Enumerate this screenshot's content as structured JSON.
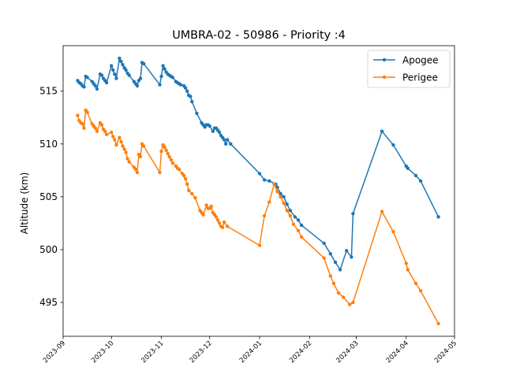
{
  "chart_data": {
    "type": "line",
    "title": "UMBRA-02 - 50986 - Priority :4",
    "xlabel": "",
    "ylabel": "Altitude (km)",
    "x_axis": "date",
    "xlim": [
      "2023-09-01",
      "2024-05-01"
    ],
    "ylim": [
      491.8,
      519.3
    ],
    "x_ticks": [
      "2023-09",
      "2023-10",
      "2023-11",
      "2023-12",
      "2024-01",
      "2024-02",
      "2024-03",
      "2024-04",
      "2024-05"
    ],
    "y_ticks": [
      495,
      500,
      505,
      510,
      515
    ],
    "grid": false,
    "legend_position": "top-right",
    "series": [
      {
        "name": "Apogee",
        "color": "#1f77b4",
        "marker": "circle",
        "points": [
          [
            "2023-09-10",
            516.0
          ],
          [
            "2023-09-11",
            515.8
          ],
          [
            "2023-09-12",
            515.7
          ],
          [
            "2023-09-13",
            515.5
          ],
          [
            "2023-09-14",
            515.4
          ],
          [
            "2023-09-15",
            516.4
          ],
          [
            "2023-09-16",
            516.3
          ],
          [
            "2023-09-19",
            515.9
          ],
          [
            "2023-09-20",
            515.7
          ],
          [
            "2023-09-21",
            515.5
          ],
          [
            "2023-09-22",
            515.2
          ],
          [
            "2023-09-24",
            516.6
          ],
          [
            "2023-09-25",
            516.5
          ],
          [
            "2023-09-26",
            516.2
          ],
          [
            "2023-09-27",
            516.0
          ],
          [
            "2023-09-28",
            515.8
          ],
          [
            "2023-10-01",
            517.4
          ],
          [
            "2023-10-02",
            517.0
          ],
          [
            "2023-10-03",
            516.6
          ],
          [
            "2023-10-04",
            516.2
          ],
          [
            "2023-10-06",
            518.1
          ],
          [
            "2023-10-07",
            517.8
          ],
          [
            "2023-10-08",
            517.5
          ],
          [
            "2023-10-09",
            517.2
          ],
          [
            "2023-10-10",
            517.0
          ],
          [
            "2023-10-11",
            516.7
          ],
          [
            "2023-10-12",
            516.5
          ],
          [
            "2023-10-15",
            515.9
          ],
          [
            "2023-10-16",
            515.7
          ],
          [
            "2023-10-17",
            515.5
          ],
          [
            "2023-10-18",
            516.0
          ],
          [
            "2023-10-19",
            516.2
          ],
          [
            "2023-10-20",
            517.7
          ],
          [
            "2023-10-21",
            517.6
          ],
          [
            "2023-10-31",
            515.6
          ],
          [
            "2023-11-01",
            516.4
          ],
          [
            "2023-11-02",
            517.4
          ],
          [
            "2023-11-03",
            517.1
          ],
          [
            "2023-11-04",
            516.8
          ],
          [
            "2023-11-05",
            516.6
          ],
          [
            "2023-11-06",
            516.5
          ],
          [
            "2023-11-07",
            516.4
          ],
          [
            "2023-11-08",
            516.3
          ],
          [
            "2023-11-10",
            515.9
          ],
          [
            "2023-11-11",
            515.8
          ],
          [
            "2023-11-12",
            515.7
          ],
          [
            "2023-11-13",
            515.6
          ],
          [
            "2023-11-15",
            515.5
          ],
          [
            "2023-11-16",
            515.3
          ],
          [
            "2023-11-17",
            515.0
          ],
          [
            "2023-11-18",
            514.6
          ],
          [
            "2023-11-19",
            514.5
          ],
          [
            "2023-11-20",
            514.0
          ],
          [
            "2023-11-23",
            512.9
          ],
          [
            "2023-11-26",
            512.0
          ],
          [
            "2023-11-27",
            511.8
          ],
          [
            "2023-11-28",
            511.6
          ],
          [
            "2023-11-29",
            511.8
          ],
          [
            "2023-11-30",
            511.8
          ],
          [
            "2023-12-01",
            511.7
          ],
          [
            "2023-12-03",
            511.2
          ],
          [
            "2023-12-04",
            511.5
          ],
          [
            "2023-12-05",
            511.5
          ],
          [
            "2023-12-06",
            511.3
          ],
          [
            "2023-12-07",
            511.1
          ],
          [
            "2023-12-08",
            510.8
          ],
          [
            "2023-12-09",
            510.6
          ],
          [
            "2023-12-10",
            510.4
          ],
          [
            "2023-12-11",
            510.0
          ],
          [
            "2023-12-12",
            510.4
          ],
          [
            "2023-12-14",
            510.0
          ],
          [
            "2024-01-01",
            507.2
          ],
          [
            "2024-01-04",
            506.6
          ],
          [
            "2024-01-07",
            506.5
          ],
          [
            "2024-01-11",
            506.2
          ],
          [
            "2024-01-12",
            505.9
          ],
          [
            "2024-01-14",
            505.3
          ],
          [
            "2024-01-16",
            505.0
          ],
          [
            "2024-01-18",
            504.3
          ],
          [
            "2024-01-20",
            503.7
          ],
          [
            "2024-01-23",
            503.1
          ],
          [
            "2024-01-25",
            502.8
          ],
          [
            "2024-01-27",
            502.3
          ],
          [
            "2024-02-10",
            500.6
          ],
          [
            "2024-02-14",
            499.6
          ],
          [
            "2024-02-17",
            498.8
          ],
          [
            "2024-02-20",
            498.1
          ],
          [
            "2024-02-24",
            499.9
          ],
          [
            "2024-02-27",
            499.3
          ],
          [
            "2024-02-28",
            503.4
          ],
          [
            "2024-03-17",
            511.2
          ],
          [
            "2024-03-24",
            509.9
          ],
          [
            "2024-04-01",
            507.9
          ],
          [
            "2024-04-02",
            507.7
          ],
          [
            "2024-04-07",
            507.0
          ],
          [
            "2024-04-10",
            506.5
          ],
          [
            "2024-04-21",
            503.1
          ]
        ]
      },
      {
        "name": "Perigee",
        "color": "#ff7f0e",
        "marker": "circle",
        "points": [
          [
            "2023-09-10",
            512.7
          ],
          [
            "2023-09-11",
            512.2
          ],
          [
            "2023-09-12",
            512.0
          ],
          [
            "2023-09-13",
            511.9
          ],
          [
            "2023-09-14",
            511.5
          ],
          [
            "2023-09-15",
            513.2
          ],
          [
            "2023-09-16",
            513.0
          ],
          [
            "2023-09-19",
            511.9
          ],
          [
            "2023-09-20",
            511.7
          ],
          [
            "2023-09-21",
            511.5
          ],
          [
            "2023-09-22",
            511.2
          ],
          [
            "2023-09-24",
            512.0
          ],
          [
            "2023-09-25",
            511.8
          ],
          [
            "2023-09-26",
            511.4
          ],
          [
            "2023-09-27",
            511.2
          ],
          [
            "2023-09-28",
            510.9
          ],
          [
            "2023-10-01",
            511.1
          ],
          [
            "2023-10-02",
            510.7
          ],
          [
            "2023-10-03",
            510.4
          ],
          [
            "2023-10-04",
            509.9
          ],
          [
            "2023-10-06",
            510.6
          ],
          [
            "2023-10-07",
            510.2
          ],
          [
            "2023-10-08",
            509.8
          ],
          [
            "2023-10-09",
            509.5
          ],
          [
            "2023-10-10",
            509.2
          ],
          [
            "2023-10-11",
            508.6
          ],
          [
            "2023-10-12",
            508.3
          ],
          [
            "2023-10-15",
            507.8
          ],
          [
            "2023-10-16",
            507.6
          ],
          [
            "2023-10-17",
            507.3
          ],
          [
            "2023-10-18",
            509.0
          ],
          [
            "2023-10-19",
            508.8
          ],
          [
            "2023-10-20",
            510.0
          ],
          [
            "2023-10-21",
            509.8
          ],
          [
            "2023-10-31",
            507.3
          ],
          [
            "2023-11-01",
            509.3
          ],
          [
            "2023-11-02",
            509.9
          ],
          [
            "2023-11-03",
            509.7
          ],
          [
            "2023-11-04",
            509.4
          ],
          [
            "2023-11-05",
            509.1
          ],
          [
            "2023-11-06",
            508.8
          ],
          [
            "2023-11-07",
            508.5
          ],
          [
            "2023-11-08",
            508.2
          ],
          [
            "2023-11-10",
            507.9
          ],
          [
            "2023-11-11",
            507.7
          ],
          [
            "2023-11-12",
            507.6
          ],
          [
            "2023-11-14",
            507.2
          ],
          [
            "2023-11-15",
            507.0
          ],
          [
            "2023-11-16",
            506.7
          ],
          [
            "2023-11-17",
            506.2
          ],
          [
            "2023-11-18",
            505.6
          ],
          [
            "2023-11-20",
            505.3
          ],
          [
            "2023-11-22",
            504.9
          ],
          [
            "2023-11-25",
            503.7
          ],
          [
            "2023-11-26",
            503.5
          ],
          [
            "2023-11-27",
            503.3
          ],
          [
            "2023-11-29",
            504.2
          ],
          [
            "2023-11-30",
            503.9
          ],
          [
            "2023-12-01",
            503.9
          ],
          [
            "2023-12-02",
            504.1
          ],
          [
            "2023-12-03",
            503.5
          ],
          [
            "2023-12-04",
            503.3
          ],
          [
            "2023-12-05",
            503.1
          ],
          [
            "2023-12-06",
            502.8
          ],
          [
            "2023-12-07",
            502.5
          ],
          [
            "2023-12-08",
            502.2
          ],
          [
            "2023-12-09",
            502.1
          ],
          [
            "2023-12-10",
            502.6
          ],
          [
            "2023-12-12",
            502.2
          ],
          [
            "2024-01-01",
            500.4
          ],
          [
            "2024-01-04",
            503.2
          ],
          [
            "2024-01-07",
            504.5
          ],
          [
            "2024-01-10",
            506.2
          ],
          [
            "2024-01-12",
            505.5
          ],
          [
            "2024-01-14",
            505.0
          ],
          [
            "2024-01-16",
            504.4
          ],
          [
            "2024-01-18",
            503.7
          ],
          [
            "2024-01-20",
            503.2
          ],
          [
            "2024-01-22",
            502.4
          ],
          [
            "2024-01-25",
            501.8
          ],
          [
            "2024-01-27",
            501.2
          ],
          [
            "2024-02-10",
            499.2
          ],
          [
            "2024-02-14",
            497.5
          ],
          [
            "2024-02-16",
            496.8
          ],
          [
            "2024-02-19",
            495.9
          ],
          [
            "2024-02-22",
            495.5
          ],
          [
            "2024-02-26",
            494.8
          ],
          [
            "2024-02-28",
            495.0
          ],
          [
            "2024-03-17",
            503.6
          ],
          [
            "2024-03-24",
            501.7
          ],
          [
            "2024-04-01",
            498.7
          ],
          [
            "2024-04-02",
            498.1
          ],
          [
            "2024-04-07",
            496.8
          ],
          [
            "2024-04-10",
            496.1
          ],
          [
            "2024-04-21",
            493.0
          ]
        ]
      }
    ]
  }
}
